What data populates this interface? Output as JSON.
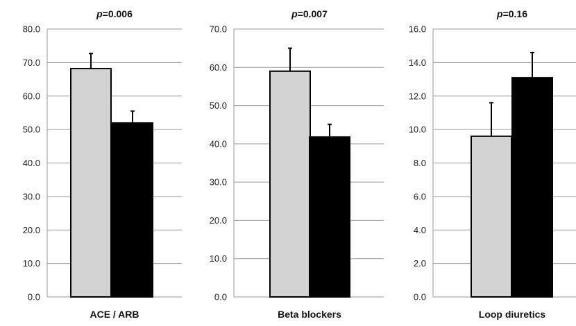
{
  "chart_data": [
    {
      "type": "bar",
      "title_prefix": "p",
      "title_value": "=0.006",
      "categories": [
        "ACE / ARB"
      ],
      "ylim": [
        0,
        80
      ],
      "ytick_step": 10,
      "ytick_labels": [
        "0.0",
        "10.0",
        "20.0",
        "30.0",
        "40.0",
        "50.0",
        "60.0",
        "70.0",
        "80.0"
      ],
      "grid": true,
      "series": [
        {
          "values": [
            68.2
          ],
          "error": [
            4.5
          ],
          "color": "#d3d3d3"
        },
        {
          "values": [
            52.0
          ],
          "error": [
            3.5
          ],
          "color": "#000000"
        }
      ]
    },
    {
      "type": "bar",
      "title_prefix": "p",
      "title_value": "=0.007",
      "categories": [
        "Beta blockers"
      ],
      "ylim": [
        0,
        70
      ],
      "ytick_step": 10,
      "ytick_labels": [
        "0.0",
        "10.0",
        "20.0",
        "30.0",
        "40.0",
        "50.0",
        "60.0",
        "70.0"
      ],
      "grid": true,
      "series": [
        {
          "values": [
            59.0
          ],
          "error": [
            6.0
          ],
          "color": "#d3d3d3"
        },
        {
          "values": [
            41.8
          ],
          "error": [
            3.3
          ],
          "color": "#000000"
        }
      ]
    },
    {
      "type": "bar",
      "title_prefix": "p",
      "title_value": "=0.16",
      "categories": [
        "Loop diuretics"
      ],
      "ylim": [
        0,
        16
      ],
      "ytick_step": 2,
      "ytick_labels": [
        "0.0",
        "2.0",
        "4.0",
        "6.0",
        "8.0",
        "10.0",
        "12.0",
        "14.0",
        "16.0"
      ],
      "grid": true,
      "series": [
        {
          "values": [
            9.6
          ],
          "error": [
            2.0
          ],
          "color": "#d3d3d3"
        },
        {
          "values": [
            13.1
          ],
          "error": [
            1.5
          ],
          "color": "#000000"
        }
      ]
    }
  ]
}
